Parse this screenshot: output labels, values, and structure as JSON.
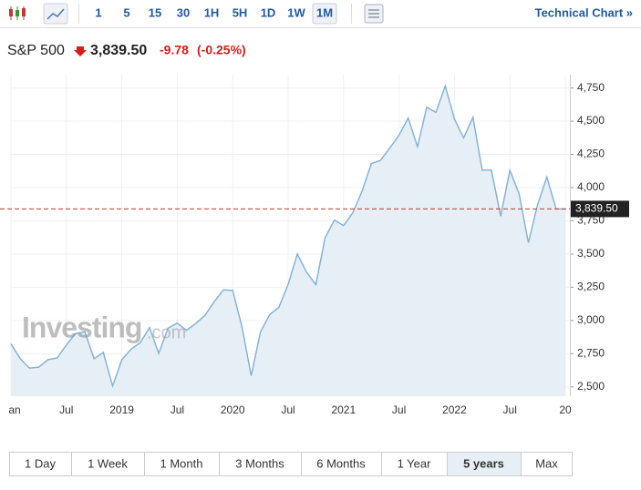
{
  "toolbar": {
    "intervals": [
      "1",
      "5",
      "15",
      "30",
      "1H",
      "5H",
      "1D",
      "1W",
      "1M"
    ],
    "active_interval": "1M",
    "link": "Technical Chart »"
  },
  "header": {
    "name": "S&P 500",
    "price": "3,839.50",
    "change": -9.78,
    "change_pct": "(-0.25%)"
  },
  "watermark": {
    "brand": "Investing",
    "suffix": ".com"
  },
  "chart_data": {
    "type": "line",
    "color": "#7fb0d8",
    "fill": "#e6eef6",
    "grid": true,
    "categories": [
      "an",
      null,
      null,
      null,
      null,
      null,
      "Jul",
      null,
      null,
      null,
      null,
      null,
      "2019",
      null,
      null,
      null,
      null,
      null,
      "Jul",
      null,
      null,
      null,
      null,
      null,
      "2020",
      null,
      null,
      null,
      null,
      null,
      "Jul",
      null,
      null,
      null,
      null,
      null,
      "2021",
      null,
      null,
      null,
      null,
      null,
      "Jul",
      null,
      null,
      null,
      null,
      null,
      "2022",
      null,
      null,
      null,
      null,
      null,
      "Jul",
      null,
      null,
      null,
      null,
      null,
      "20"
    ],
    "values": [
      2824,
      2714,
      2641,
      2648,
      2705,
      2718,
      2816,
      2902,
      2914,
      2712,
      2760,
      2507,
      2704,
      2784,
      2834,
      2946,
      2752,
      2942,
      2980,
      2926,
      2977,
      3038,
      3141,
      3231,
      3226,
      2954,
      2585,
      2912,
      3044,
      3100,
      3271,
      3500,
      3363,
      3270,
      3622,
      3756,
      3714,
      3811,
      3973,
      4181,
      4204,
      4298,
      4395,
      4523,
      4308,
      4605,
      4567,
      4766,
      4516,
      4374,
      4530,
      4132,
      4132,
      3785,
      4130,
      3955,
      3586,
      3872,
      4080,
      3840,
      3839.5
    ],
    "ylim": [
      2430,
      4850
    ],
    "yticks": [
      {
        "value": 2500,
        "label": "2,500"
      },
      {
        "value": 2750,
        "label": "2,750"
      },
      {
        "value": 3000,
        "label": "3,000"
      },
      {
        "value": 3250,
        "label": "3,250"
      },
      {
        "value": 3500,
        "label": "3,500"
      },
      {
        "value": 3750,
        "label": "3,750"
      },
      {
        "value": 4000,
        "label": "4,000"
      },
      {
        "value": 4250,
        "label": "4,250"
      },
      {
        "value": 4500,
        "label": "4,500"
      },
      {
        "value": 4750,
        "label": "4,750"
      }
    ],
    "last": {
      "value": 3839.5,
      "label": "3,839.50"
    }
  },
  "ranges": {
    "tabs": [
      "1 Day",
      "1 Week",
      "1 Month",
      "3 Months",
      "6 Months",
      "1 Year",
      "5 years",
      "Max"
    ],
    "active": "5 years"
  }
}
